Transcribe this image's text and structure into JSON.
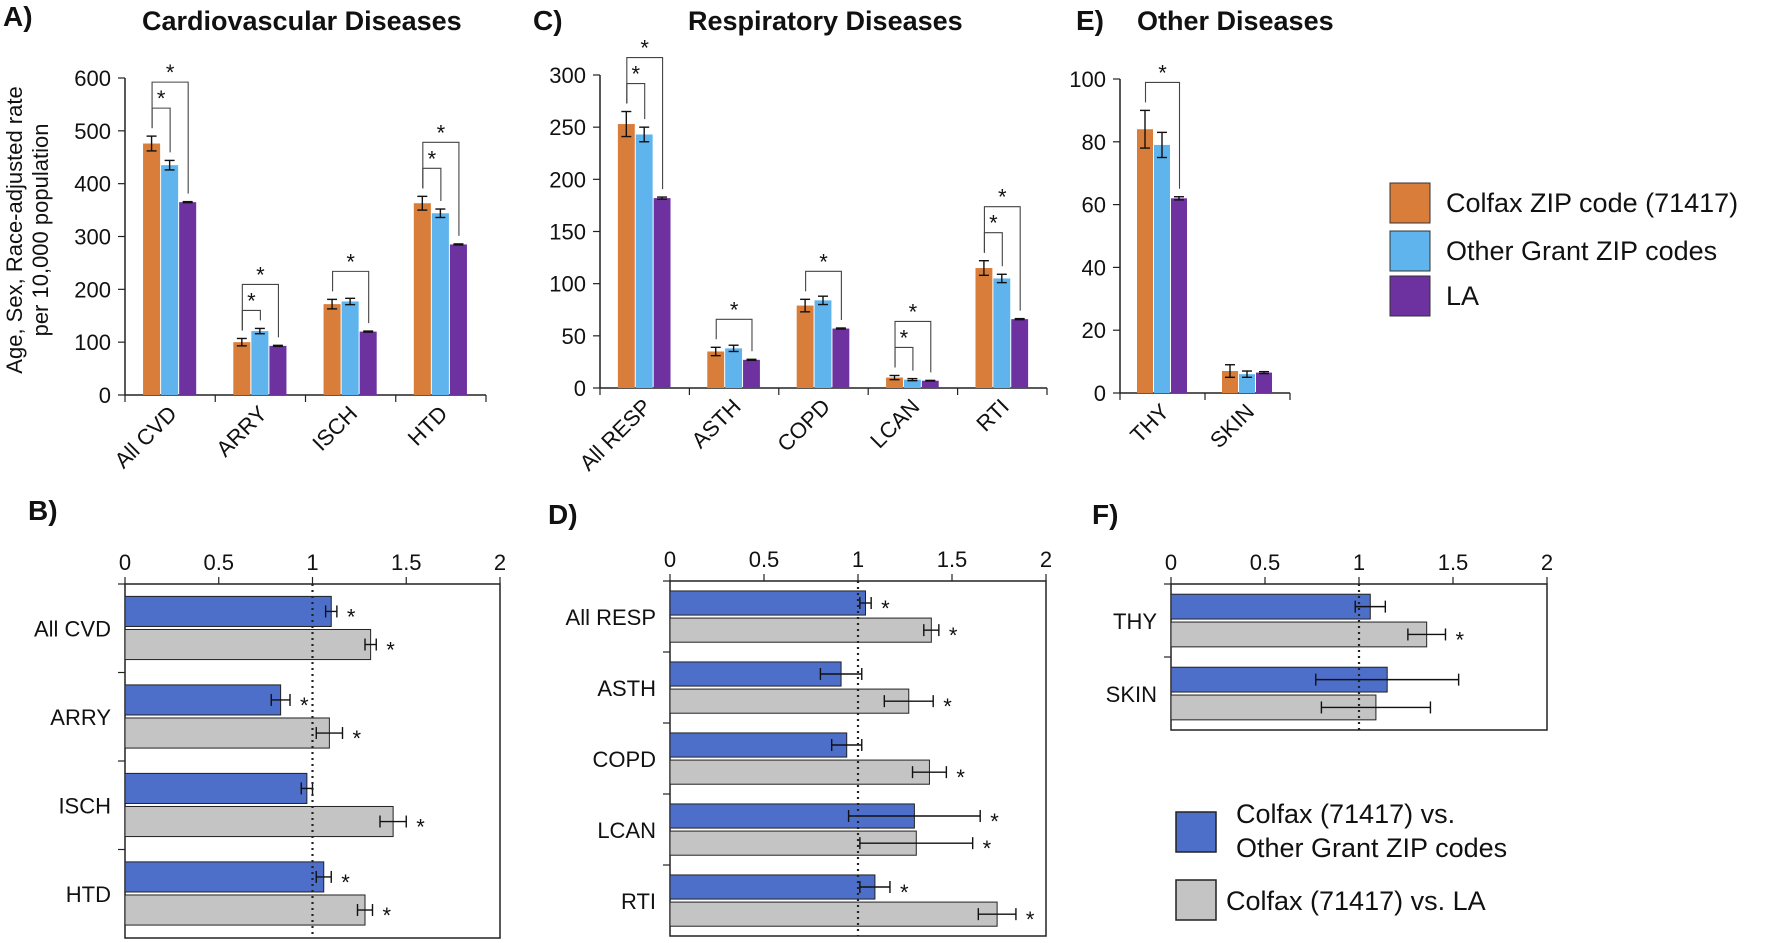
{
  "colors": {
    "colfax": "#D97E3A",
    "other_grant": "#5FB4EE",
    "la": "#6E32A0",
    "ratio_vs_other": "#4D6FC9",
    "ratio_vs_la": "#C4C4C4"
  },
  "legend_top": [
    "Colfax ZIP code (71417)",
    "Other Grant ZIP codes",
    "LA"
  ],
  "legend_bottom": [
    "Colfax (71417) vs.",
    "Other Grant ZIP codes",
    "Colfax (71417) vs. LA"
  ],
  "significance_mark": "*",
  "y_axis_label_lines": [
    "Age, Sex, Race-adjusted rate",
    "per 10,000 population"
  ],
  "chart_data": [
    {
      "panel": "A)",
      "title": "Cardiovascular Diseases",
      "type": "bar",
      "categories": [
        "All CVD",
        "ARRY",
        "ISCH",
        "HTD"
      ],
      "ylim": [
        0,
        600
      ],
      "yticks": [
        0,
        100,
        200,
        300,
        400,
        500,
        600
      ],
      "yticklabels": [
        "0",
        "100",
        "200",
        "300",
        "400",
        "500",
        "600"
      ],
      "series": [
        {
          "name": "Colfax ZIP code (71417)",
          "values": [
            476,
            100,
            172,
            363
          ],
          "errors": [
            14,
            7,
            9,
            13
          ]
        },
        {
          "name": "Other Grant ZIP codes",
          "values": [
            435,
            121,
            177,
            344
          ],
          "errors": [
            9,
            5,
            6,
            8
          ]
        },
        {
          "name": "LA",
          "values": [
            365,
            93,
            120,
            285
          ],
          "errors": [
            1,
            1,
            1,
            1
          ]
        }
      ],
      "significance": [
        {
          "category": 0,
          "from": 0,
          "to": 1,
          "mark": "*"
        },
        {
          "category": 0,
          "from": 0,
          "to": 2,
          "mark": "*"
        },
        {
          "category": 1,
          "from": 0,
          "to": 1,
          "mark": "*"
        },
        {
          "category": 1,
          "from": 0,
          "to": 2,
          "mark": "*"
        },
        {
          "category": 2,
          "from": 0,
          "to": 2,
          "mark": "*"
        },
        {
          "category": 3,
          "from": 0,
          "to": 1,
          "mark": "*"
        },
        {
          "category": 3,
          "from": 0,
          "to": 2,
          "mark": "*"
        }
      ]
    },
    {
      "panel": "C)",
      "title": "Respiratory Diseases",
      "type": "bar",
      "categories": [
        "All RESP",
        "ASTH",
        "COPD",
        "LCAN",
        "RTI"
      ],
      "ylim": [
        0,
        300
      ],
      "yticks": [
        0,
        50,
        100,
        150,
        200,
        250,
        300
      ],
      "yticklabels": [
        "0",
        "50",
        "100",
        "150",
        "200",
        "250",
        "300"
      ],
      "series": [
        {
          "name": "Colfax ZIP code (71417)",
          "values": [
            253,
            35,
            79,
            10,
            115
          ],
          "errors": [
            12,
            4,
            6,
            2,
            7
          ]
        },
        {
          "name": "Other Grant ZIP codes",
          "values": [
            243,
            38,
            84,
            8,
            105
          ],
          "errors": [
            7,
            3,
            4,
            1,
            4
          ]
        },
        {
          "name": "LA",
          "values": [
            182,
            27,
            57,
            7,
            66
          ],
          "errors": [
            1,
            0.5,
            0.5,
            0.3,
            0.5
          ]
        }
      ],
      "significance": [
        {
          "category": 0,
          "from": 0,
          "to": 1,
          "mark": "*"
        },
        {
          "category": 0,
          "from": 0,
          "to": 2,
          "mark": "*"
        },
        {
          "category": 1,
          "from": 0,
          "to": 2,
          "mark": "*"
        },
        {
          "category": 2,
          "from": 0,
          "to": 2,
          "mark": "*"
        },
        {
          "category": 3,
          "from": 0,
          "to": 1,
          "mark": "*"
        },
        {
          "category": 3,
          "from": 0,
          "to": 2,
          "mark": "*"
        },
        {
          "category": 4,
          "from": 0,
          "to": 1,
          "mark": "*"
        },
        {
          "category": 4,
          "from": 0,
          "to": 2,
          "mark": "*"
        }
      ]
    },
    {
      "panel": "E)",
      "title": "Other Diseases",
      "type": "bar",
      "categories": [
        "THY",
        "SKIN"
      ],
      "ylim": [
        0,
        100
      ],
      "yticks": [
        0,
        20,
        40,
        60,
        80,
        100
      ],
      "yticklabels": [
        "0",
        "20",
        "40",
        "60",
        "80",
        "100"
      ],
      "series": [
        {
          "name": "Colfax ZIP code (71417)",
          "values": [
            84,
            7
          ],
          "errors": [
            6,
            2
          ]
        },
        {
          "name": "Other Grant ZIP codes",
          "values": [
            79,
            6
          ],
          "errors": [
            4,
            1
          ]
        },
        {
          "name": "LA",
          "values": [
            62,
            6.5
          ],
          "errors": [
            0.5,
            0.3
          ]
        }
      ],
      "significance": [
        {
          "category": 0,
          "from": 0,
          "to": 2,
          "mark": "*"
        }
      ]
    },
    {
      "panel": "B)",
      "type": "bar",
      "orientation": "horizontal",
      "categories": [
        "All CVD",
        "ARRY",
        "ISCH",
        "HTD"
      ],
      "xlim": [
        0,
        2
      ],
      "xticks": [
        0,
        0.5,
        1,
        1.5,
        2
      ],
      "xticklabels": [
        "0",
        "0.5",
        "1",
        "1.5",
        "2"
      ],
      "reference_line": 1,
      "series": [
        {
          "name": "Colfax (71417) vs. Other Grant ZIP codes",
          "values": [
            1.1,
            0.83,
            0.97,
            1.06
          ],
          "errors": [
            0.03,
            0.05,
            0.03,
            0.04
          ],
          "significant": [
            true,
            true,
            false,
            true
          ]
        },
        {
          "name": "Colfax (71417) vs. LA",
          "values": [
            1.31,
            1.09,
            1.43,
            1.28
          ],
          "errors": [
            0.03,
            0.07,
            0.07,
            0.04
          ],
          "significant": [
            true,
            true,
            true,
            true
          ]
        }
      ]
    },
    {
      "panel": "D)",
      "type": "bar",
      "orientation": "horizontal",
      "categories": [
        "All RESP",
        "ASTH",
        "COPD",
        "LCAN",
        "RTI"
      ],
      "xlim": [
        0,
        2
      ],
      "xticks": [
        0,
        0.5,
        1,
        1.5,
        2
      ],
      "xticklabels": [
        "0",
        "0.5",
        "1",
        "1.5",
        "2"
      ],
      "reference_line": 1,
      "series": [
        {
          "name": "Colfax (71417) vs. Other Grant ZIP codes",
          "values": [
            1.04,
            0.91,
            0.94,
            1.3,
            1.09
          ],
          "errors": [
            0.03,
            0.11,
            0.08,
            0.35,
            0.08
          ],
          "significant": [
            true,
            false,
            false,
            true,
            true
          ]
        },
        {
          "name": "Colfax (71417) vs. LA",
          "values": [
            1.39,
            1.27,
            1.38,
            1.31,
            1.74
          ],
          "errors": [
            0.04,
            0.13,
            0.09,
            0.3,
            0.1
          ],
          "significant": [
            true,
            true,
            true,
            true,
            true
          ]
        }
      ]
    },
    {
      "panel": "F)",
      "type": "bar",
      "orientation": "horizontal",
      "categories": [
        "THY",
        "SKIN"
      ],
      "xlim": [
        0,
        2
      ],
      "xticks": [
        0,
        0.5,
        1,
        1.5,
        2
      ],
      "xticklabels": [
        "0",
        "0.5",
        "1",
        "1.5",
        "2"
      ],
      "reference_line": 1,
      "series": [
        {
          "name": "Colfax (71417) vs. Other Grant ZIP codes",
          "values": [
            1.06,
            1.15
          ],
          "errors": [
            0.08,
            0.38
          ],
          "significant": [
            false,
            false
          ]
        },
        {
          "name": "Colfax (71417) vs. LA",
          "values": [
            1.36,
            1.09
          ],
          "errors": [
            0.1,
            0.29
          ],
          "significant": [
            true,
            false
          ]
        }
      ]
    }
  ]
}
